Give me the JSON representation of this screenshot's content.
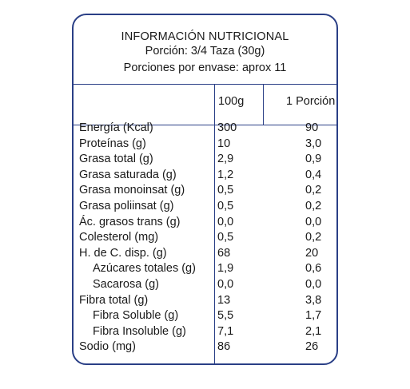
{
  "header": {
    "title": "INFORMACIÓN NUTRICIONAL",
    "portion": "Porción: 3/4 Taza (30g)",
    "servings": "Porciones por envase: aprox 11"
  },
  "columns": {
    "per100": "100g",
    "perPortion": "1 Porción"
  },
  "rows": [
    {
      "name": "Energía (Kcal)",
      "v100": "300",
      "vpor": "90"
    },
    {
      "name": "Proteínas (g)",
      "v100": "10",
      "vpor": "3,0"
    },
    {
      "name": "Grasa total (g)",
      "v100": "2,9",
      "vpor": "0,9"
    },
    {
      "name": "Grasa saturada (g)",
      "v100": "1,2",
      "vpor": "0,4"
    },
    {
      "name": "Grasa monoinsat (g)",
      "v100": "0,5",
      "vpor": "0,2"
    },
    {
      "name": "Grasa poliinsat (g)",
      "v100": "0,5",
      "vpor": "0,2"
    },
    {
      "name": "Ác. grasos trans (g)",
      "v100": "0,0",
      "vpor": "0,0"
    },
    {
      "name": "Colesterol (mg)",
      "v100": "0,5",
      "vpor": "0,2"
    },
    {
      "name": "H. de C. disp. (g)",
      "v100": "68",
      "vpor": "20"
    },
    {
      "name": "Azúcares totales (g)",
      "v100": "1,9",
      "vpor": "0,6"
    },
    {
      "name": "Sacarosa (g)",
      "v100": "0,0",
      "vpor": "0,0"
    },
    {
      "name": "Fibra total (g)",
      "v100": "13",
      "vpor": "3,8"
    },
    {
      "name": "Fibra Soluble (g)",
      "v100": "5,5",
      "vpor": "1,7"
    },
    {
      "name": "Fibra Insoluble (g)",
      "v100": "7,1",
      "vpor": "2,1"
    },
    {
      "name": "Sodio (mg)",
      "v100": "86",
      "vpor": "26"
    }
  ]
}
